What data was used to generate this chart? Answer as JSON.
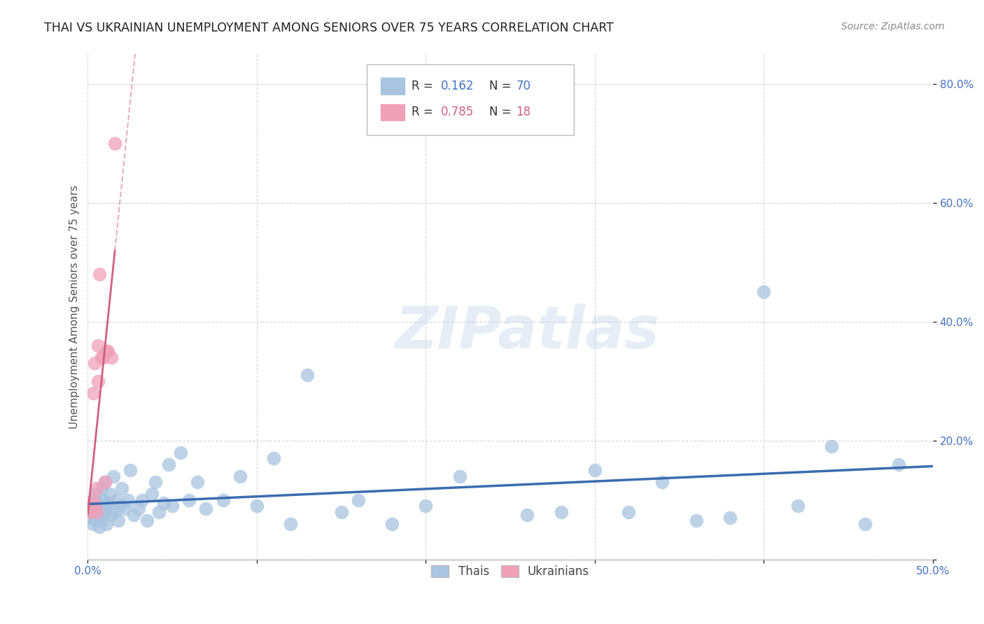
{
  "title": "THAI VS UKRAINIAN UNEMPLOYMENT AMONG SENIORS OVER 75 YEARS CORRELATION CHART",
  "source": "Source: ZipAtlas.com",
  "ylabel": "Unemployment Among Seniors over 75 years",
  "xlim": [
    0.0,
    0.5
  ],
  "ylim": [
    0.0,
    0.85
  ],
  "xticks": [
    0.0,
    0.1,
    0.2,
    0.3,
    0.4,
    0.5
  ],
  "xticklabels": [
    "0.0%",
    "",
    "",
    "",
    "",
    "50.0%"
  ],
  "yticks": [
    0.0,
    0.2,
    0.4,
    0.6,
    0.8
  ],
  "yticklabels": [
    "",
    "20.0%",
    "40.0%",
    "60.0%",
    "80.0%"
  ],
  "thai_R": "0.162",
  "thai_N": "70",
  "ukr_R": "0.785",
  "ukr_N": "18",
  "thai_color": "#a8c4e0",
  "ukr_color": "#f0a0b8",
  "thai_line_color": "#3a6cb0",
  "ukr_line_color": "#d06080",
  "background_color": "#ffffff",
  "grid_color": "#cccccc",
  "thai_x": [
    0.001,
    0.002,
    0.003,
    0.003,
    0.004,
    0.004,
    0.005,
    0.005,
    0.005,
    0.006,
    0.006,
    0.007,
    0.007,
    0.008,
    0.008,
    0.009,
    0.009,
    0.01,
    0.01,
    0.011,
    0.011,
    0.012,
    0.013,
    0.014,
    0.015,
    0.016,
    0.017,
    0.018,
    0.019,
    0.02,
    0.022,
    0.024,
    0.025,
    0.027,
    0.03,
    0.032,
    0.035,
    0.038,
    0.04,
    0.042,
    0.045,
    0.048,
    0.05,
    0.055,
    0.06,
    0.065,
    0.07,
    0.08,
    0.09,
    0.1,
    0.11,
    0.12,
    0.13,
    0.15,
    0.16,
    0.18,
    0.2,
    0.22,
    0.26,
    0.28,
    0.3,
    0.32,
    0.34,
    0.36,
    0.38,
    0.4,
    0.42,
    0.44,
    0.46,
    0.48
  ],
  "thai_y": [
    0.08,
    0.07,
    0.09,
    0.06,
    0.1,
    0.075,
    0.085,
    0.065,
    0.11,
    0.095,
    0.07,
    0.08,
    0.055,
    0.12,
    0.065,
    0.1,
    0.075,
    0.09,
    0.13,
    0.085,
    0.06,
    0.095,
    0.11,
    0.075,
    0.14,
    0.08,
    0.1,
    0.065,
    0.09,
    0.12,
    0.085,
    0.1,
    0.15,
    0.075,
    0.085,
    0.1,
    0.065,
    0.11,
    0.13,
    0.08,
    0.095,
    0.16,
    0.09,
    0.18,
    0.1,
    0.13,
    0.085,
    0.1,
    0.14,
    0.09,
    0.17,
    0.06,
    0.31,
    0.08,
    0.1,
    0.06,
    0.09,
    0.14,
    0.075,
    0.08,
    0.15,
    0.08,
    0.13,
    0.065,
    0.07,
    0.45,
    0.09,
    0.19,
    0.06,
    0.16
  ],
  "ukr_x": [
    0.001,
    0.002,
    0.003,
    0.003,
    0.004,
    0.004,
    0.005,
    0.005,
    0.006,
    0.006,
    0.007,
    0.008,
    0.009,
    0.01,
    0.011,
    0.012,
    0.014,
    0.016
  ],
  "ukr_y": [
    0.08,
    0.09,
    0.1,
    0.28,
    0.09,
    0.33,
    0.08,
    0.12,
    0.3,
    0.36,
    0.48,
    0.34,
    0.34,
    0.13,
    0.35,
    0.35,
    0.34,
    0.7
  ]
}
